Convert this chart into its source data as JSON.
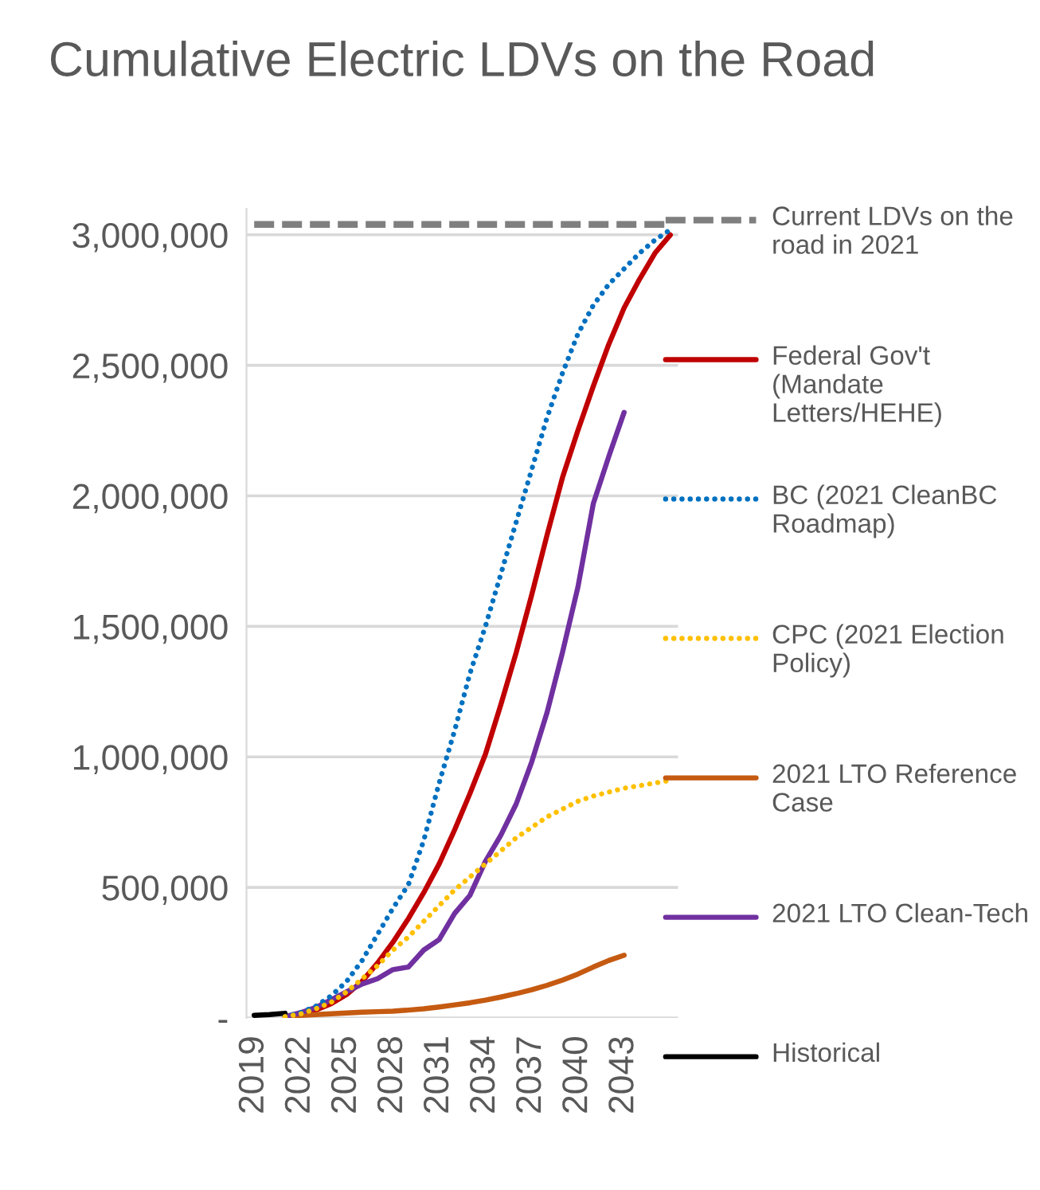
{
  "chart_data": {
    "type": "line",
    "title": "Cumulative Electric LDVs on the Road",
    "xlim": [
      2018.5,
      2046.5
    ],
    "xticks": [
      2019,
      2022,
      2025,
      2028,
      2031,
      2034,
      2037,
      2040,
      2043
    ],
    "ylim": [
      0,
      3100000
    ],
    "yticks": [
      {
        "value": 0,
        "label": "-"
      },
      {
        "value": 500000,
        "label": "500,000"
      },
      {
        "value": 1000000,
        "label": "1,000,000"
      },
      {
        "value": 1500000,
        "label": "1,500,000"
      },
      {
        "value": 2000000,
        "label": "2,000,000"
      },
      {
        "value": 2500000,
        "label": "2,500,000"
      },
      {
        "value": 3000000,
        "label": "3,000,000"
      }
    ],
    "grid": "y",
    "legend": "right",
    "series": [
      {
        "name": "Current LDVs on the road in 2021",
        "color": "#7f7f7f",
        "line_style": "dashed",
        "x": [
          2019,
          2046
        ],
        "values": [
          3040000,
          3040000
        ]
      },
      {
        "name": "Federal Gov't (Mandate Letters/HEHE)",
        "color": "#c00000",
        "line_style": "solid",
        "x": [
          2021,
          2022,
          2023,
          2024,
          2025,
          2026,
          2027,
          2028,
          2029,
          2030,
          2031,
          2032,
          2033,
          2034,
          2035,
          2036,
          2037,
          2038,
          2039,
          2040,
          2041,
          2042,
          2043,
          2044,
          2045,
          2046
        ],
        "values": [
          5000,
          15000,
          30000,
          55000,
          90000,
          140000,
          210000,
          290000,
          380000,
          480000,
          590000,
          720000,
          860000,
          1010000,
          1200000,
          1400000,
          1620000,
          1850000,
          2070000,
          2250000,
          2420000,
          2580000,
          2720000,
          2830000,
          2930000,
          3000000
        ]
      },
      {
        "name": "BC (2021 CleanBC Roadmap)",
        "color": "#0070c0",
        "line_style": "dotted",
        "x": [
          2021,
          2022,
          2023,
          2024,
          2025,
          2026,
          2027,
          2028,
          2029,
          2030,
          2031,
          2032,
          2033,
          2034,
          2035,
          2036,
          2037,
          2038,
          2039,
          2040,
          2041,
          2042,
          2043,
          2044,
          2045,
          2046
        ],
        "values": [
          5000,
          20000,
          45000,
          85000,
          140000,
          220000,
          320000,
          420000,
          510000,
          680000,
          900000,
          1100000,
          1320000,
          1500000,
          1700000,
          1900000,
          2100000,
          2300000,
          2470000,
          2620000,
          2730000,
          2810000,
          2870000,
          2930000,
          2980000,
          3020000
        ]
      },
      {
        "name": "CPC (2021 Election Policy)",
        "color": "#ffc000",
        "line_style": "dotted",
        "x": [
          2021,
          2022,
          2023,
          2024,
          2025,
          2026,
          2027,
          2028,
          2029,
          2030,
          2031,
          2032,
          2033,
          2034,
          2035,
          2036,
          2037,
          2038,
          2039,
          2040,
          2041,
          2042,
          2043,
          2044,
          2045,
          2046
        ],
        "values": [
          5000,
          15000,
          35000,
          60000,
          100000,
          150000,
          200000,
          260000,
          310000,
          370000,
          430000,
          490000,
          540000,
          590000,
          640000,
          690000,
          730000,
          770000,
          800000,
          830000,
          850000,
          865000,
          880000,
          890000,
          900000,
          910000
        ]
      },
      {
        "name": "2021 LTO Reference Case",
        "color": "#c55a11",
        "line_style": "solid",
        "x": [
          2021,
          2022,
          2023,
          2024,
          2025,
          2026,
          2027,
          2028,
          2029,
          2030,
          2031,
          2032,
          2033,
          2034,
          2035,
          2036,
          2037,
          2038,
          2039,
          2040,
          2041,
          2042,
          2043
        ],
        "values": [
          5000,
          10000,
          13000,
          16000,
          19000,
          22000,
          24000,
          26000,
          30000,
          35000,
          42000,
          50000,
          58000,
          68000,
          80000,
          93000,
          108000,
          125000,
          145000,
          168000,
          195000,
          220000,
          240000
        ]
      },
      {
        "name": "2021 LTO Clean-Tech",
        "color": "#7030a0",
        "line_style": "solid",
        "x": [
          2021,
          2022,
          2023,
          2024,
          2025,
          2026,
          2027,
          2028,
          2029,
          2030,
          2031,
          2032,
          2033,
          2034,
          2035,
          2036,
          2037,
          2038,
          2039,
          2040,
          2041,
          2042,
          2043
        ],
        "values": [
          5000,
          20000,
          40000,
          70000,
          100000,
          130000,
          150000,
          185000,
          195000,
          260000,
          300000,
          400000,
          470000,
          600000,
          700000,
          820000,
          980000,
          1170000,
          1400000,
          1650000,
          1970000,
          2150000,
          2320000
        ]
      },
      {
        "name": "Historical",
        "color": "#000000",
        "line_style": "solid",
        "x": [
          2019,
          2020,
          2021
        ],
        "values": [
          10000,
          13000,
          18000
        ]
      }
    ]
  }
}
